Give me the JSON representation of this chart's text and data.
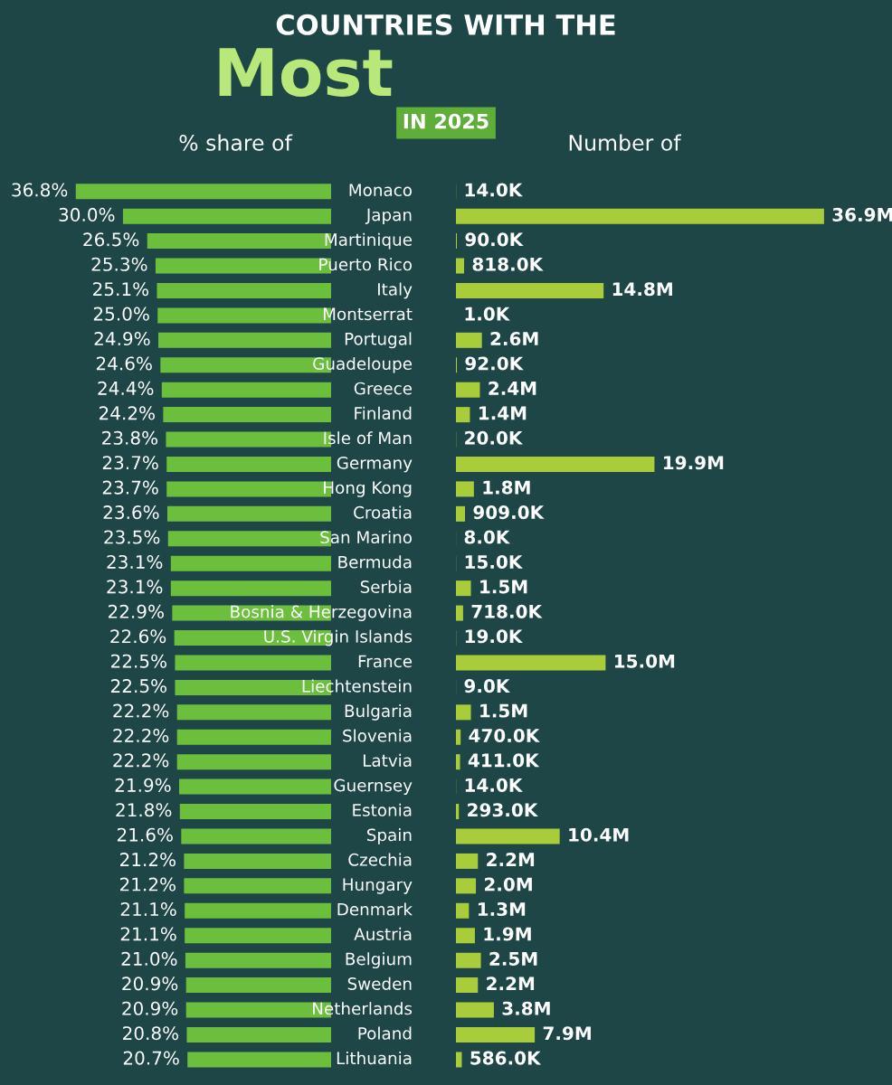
{
  "chart_data": [
    {
      "type": "bar",
      "orientation": "horizontal",
      "title": "COUNTRIES WITH THE",
      "subtitle": "Most",
      "annotations": [
        "IN 2025"
      ],
      "xlabel": "% share of",
      "categories": [
        "Monaco",
        "Japan",
        "Martinique",
        "Puerto Rico",
        "Italy",
        "Montserrat",
        "Portugal",
        "Guadeloupe",
        "Greece",
        "Finland",
        "Isle of Man",
        "Germany",
        "Hong Kong",
        "Croatia",
        "San Marino",
        "Bermuda",
        "Serbia",
        "Bosnia & Herzegovina",
        "U.S. Virgin Islands",
        "France",
        "Liechtenstein",
        "Bulgaria",
        "Slovenia",
        "Latvia",
        "Guernsey",
        "Estonia",
        "Spain",
        "Czechia",
        "Hungary",
        "Denmark",
        "Austria",
        "Belgium",
        "Sweden",
        "Netherlands",
        "Poland",
        "Lithuania"
      ],
      "values": [
        36.8,
        30.0,
        26.5,
        25.3,
        25.1,
        25.0,
        24.9,
        24.6,
        24.4,
        24.2,
        23.8,
        23.7,
        23.7,
        23.6,
        23.5,
        23.1,
        23.1,
        22.9,
        22.6,
        22.5,
        22.5,
        22.2,
        22.2,
        22.2,
        21.9,
        21.8,
        21.6,
        21.2,
        21.2,
        21.1,
        21.1,
        21.0,
        20.9,
        20.9,
        20.8,
        20.7
      ],
      "value_labels": [
        "36.8%",
        "30.0%",
        "26.5%",
        "25.3%",
        "25.1%",
        "25.0%",
        "24.9%",
        "24.6%",
        "24.4%",
        "24.2%",
        "23.8%",
        "23.7%",
        "23.7%",
        "23.6%",
        "23.5%",
        "23.1%",
        "23.1%",
        "22.9%",
        "22.6%",
        "22.5%",
        "22.5%",
        "22.2%",
        "22.2%",
        "22.2%",
        "21.9%",
        "21.8%",
        "21.6%",
        "21.2%",
        "21.2%",
        "21.1%",
        "21.1%",
        "21.0%",
        "20.9%",
        "20.9%",
        "20.8%",
        "20.7%"
      ],
      "color": "#6cbf3c"
    },
    {
      "type": "bar",
      "orientation": "horizontal",
      "xlabel": "Number of",
      "categories": [
        null,
        null,
        null,
        null,
        null,
        null,
        null,
        null,
        null,
        null,
        null,
        null,
        null,
        null,
        null,
        null,
        null,
        null,
        null,
        null,
        null,
        null,
        null,
        null,
        null,
        null,
        null,
        null,
        null,
        null,
        null,
        null,
        null,
        null,
        null,
        null
      ],
      "values": [
        14000,
        36900000,
        90000,
        818000,
        14800000,
        1000,
        2600000,
        92000,
        2400000,
        1400000,
        20000,
        19900000,
        1800000,
        909000,
        8000,
        15000,
        1500000,
        718000,
        19000,
        15000000,
        9000,
        1500000,
        470000,
        411000,
        14000,
        293000,
        10400000,
        2200000,
        2000000,
        1300000,
        1900000,
        2500000,
        2200000,
        3800000,
        7900000,
        586000
      ],
      "value_labels": [
        "14.0K",
        "36.9M",
        "90.0K",
        "818.0K",
        "14.8M",
        "1.0K",
        "2.6M",
        "92.0K",
        "2.4M",
        "1.4M",
        "20.0K",
        "19.9M",
        "1.8M",
        "909.0K",
        "8.0K",
        "15.0K",
        "1.5M",
        "718.0K",
        "19.0K",
        "15.0M",
        "9.0K",
        "1.5M",
        "470.0K",
        "411.0K",
        "14.0K",
        "293.0K",
        "10.4M",
        "2.2M",
        "2.0M",
        "1.3M",
        "1.9M",
        "2.5M",
        "2.2M",
        "3.8M",
        "7.9M",
        "586.0K"
      ],
      "color": "#a8cc3a"
    }
  ]
}
